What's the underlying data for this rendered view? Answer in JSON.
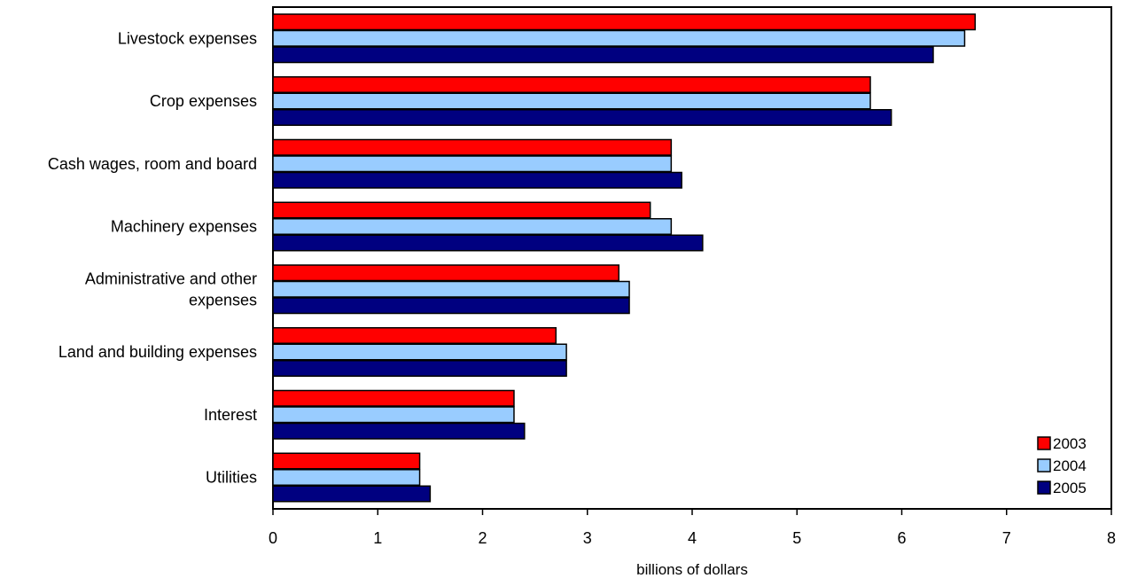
{
  "chart_data": {
    "type": "bar",
    "orientation": "horizontal",
    "title": "",
    "xlabel": "billions of dollars",
    "ylabel": "",
    "xlim": [
      0,
      8
    ],
    "xticks": [
      0,
      1,
      2,
      3,
      4,
      5,
      6,
      7,
      8
    ],
    "grid": false,
    "legend_position": "bottom-right",
    "categories": [
      [
        "Livestock expenses"
      ],
      [
        "Crop expenses"
      ],
      [
        "Cash wages, room and board"
      ],
      [
        "Machinery expenses"
      ],
      [
        "Administrative and other",
        "expenses"
      ],
      [
        "Land and building expenses"
      ],
      [
        "Interest"
      ],
      [
        "Utilities"
      ]
    ],
    "series": [
      {
        "name": "2003",
        "color": "#ff0000",
        "values": [
          6.7,
          5.7,
          3.8,
          3.6,
          3.3,
          2.7,
          2.3,
          1.4
        ]
      },
      {
        "name": "2004",
        "color": "#99ccff",
        "values": [
          6.6,
          5.7,
          3.8,
          3.8,
          3.4,
          2.8,
          2.3,
          1.4
        ]
      },
      {
        "name": "2005",
        "color": "#000080",
        "values": [
          6.3,
          5.9,
          3.9,
          4.1,
          3.4,
          2.8,
          2.4,
          1.5
        ]
      }
    ]
  }
}
